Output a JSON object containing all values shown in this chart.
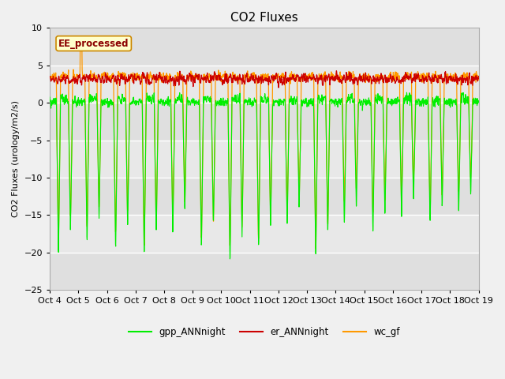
{
  "title": "CO2 Fluxes",
  "ylabel": "CO2 Fluxes (urology/m2/s)",
  "ylim": [
    -25,
    10
  ],
  "yticks": [
    -25,
    -20,
    -15,
    -10,
    -5,
    0,
    5,
    10
  ],
  "xtick_labels": [
    "Oct 4",
    "Oct 5",
    "Oct 6",
    "Oct 7",
    "Oct 8",
    "Oct 9",
    "Oct 10",
    "Oct 11",
    "Oct 12",
    "Oct 13",
    "Oct 14",
    "Oct 15",
    "Oct 16",
    "Oct 17",
    "Oct 18",
    "Oct 19"
  ],
  "color_gpp": "#00ee00",
  "color_er": "#cc0000",
  "color_wc": "#ff9900",
  "label_gpp": "gpp_ANNnight",
  "label_er": "er_ANNnight",
  "label_wc": "wc_gf",
  "ee_label": "EE_processed",
  "bg_color": "#f0f0f0",
  "plot_bg": "#e8e8e8",
  "n_days": 15,
  "pts_per_day": 144,
  "title_fontsize": 11,
  "band_colors": [
    "#e8e8e8",
    "#d8d8d8"
  ]
}
